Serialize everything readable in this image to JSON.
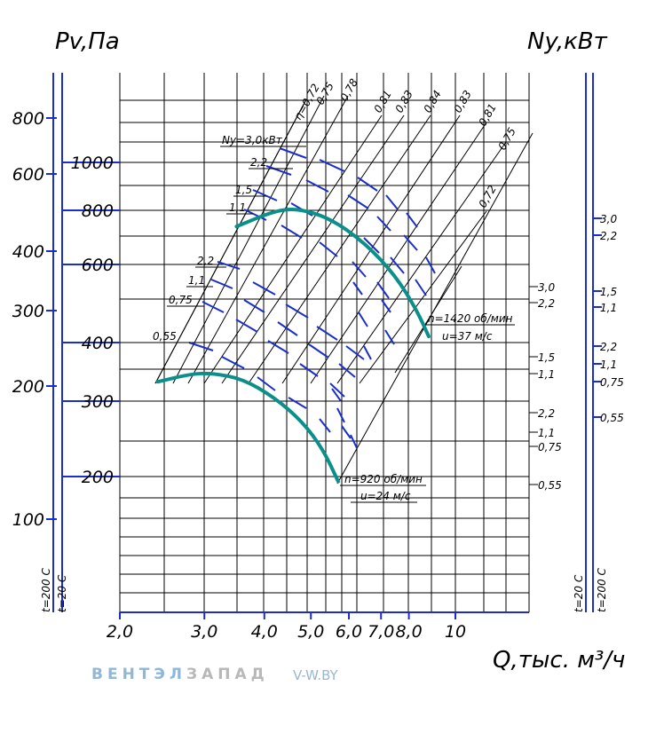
{
  "chart_data": {
    "type": "line",
    "title": "",
    "xlabel": "Q,тыс. м³/ч",
    "ylabel_left": "Pv,Па",
    "ylabel_right": "Ny,кВт",
    "x_ticks": [
      "2,0",
      "3,0",
      "4,0",
      "5,0",
      "6,0",
      "7,0",
      "8,0",
      "10"
    ],
    "x_tick_values": [
      2.0,
      3.0,
      4.0,
      5.0,
      6.0,
      7.0,
      8.0,
      10.0
    ],
    "xlim": [
      2.0,
      12.5
    ],
    "x_scale": "log",
    "y_ticks_inner": [
      "1000",
      "800",
      "600",
      "400",
      "300",
      "200"
    ],
    "y_ticks_outer": [
      "800",
      "600",
      "400",
      "300",
      "200",
      "100"
    ],
    "temp_left_outer": "t=200 C",
    "temp_left_inner": "t=20 C",
    "temp_right_inner": "t=20 C",
    "temp_right_outer": "t=200 C",
    "efficiency_labels": [
      "η=0,72",
      "0,75",
      "0,78",
      "0,81",
      "0,83",
      "0,84",
      "0,83",
      "0,81",
      "0,75",
      "0,72"
    ],
    "power_labels_upper": [
      "Ny=3,0кВт",
      "2,2",
      "1,5",
      "1,1"
    ],
    "power_labels_lower": [
      "2,2",
      "1,1",
      "0,75",
      "0,55"
    ],
    "power_scale_right_inner": [
      "3,0",
      "2,2",
      "1,5",
      "1,1",
      "2,2",
      "1,1",
      "0,75",
      "0,55"
    ],
    "power_scale_right_outer": [
      "3,0",
      "2,2",
      "1,5",
      "1,1",
      "2,2",
      "1,1",
      "0,75",
      "0,55"
    ],
    "series": [
      {
        "name": "n=1420 об/мин",
        "speed_label": "n=1420 об/мин",
        "velocity_label": "u=37 м/с",
        "points": [
          [
            3.5,
            720
          ],
          [
            4.2,
            780
          ],
          [
            4.7,
            790
          ],
          [
            5.5,
            750
          ],
          [
            6.5,
            660
          ],
          [
            7.5,
            560
          ],
          [
            8.3,
            470
          ],
          [
            8.8,
            410
          ]
        ]
      },
      {
        "name": "n=920 об/мин",
        "speed_label": "n=920 об/мин",
        "velocity_label": "u=24 м/с",
        "points": [
          [
            2.4,
            325
          ],
          [
            2.8,
            338
          ],
          [
            3.1,
            340
          ],
          [
            3.6,
            330
          ],
          [
            4.2,
            300
          ],
          [
            4.8,
            265
          ],
          [
            5.3,
            230
          ],
          [
            5.7,
            195
          ]
        ]
      }
    ],
    "grid": true,
    "colors": {
      "curve": "#0a8f8a",
      "blue": "#1a2ecc",
      "grid": "#000000"
    }
  },
  "brand": {
    "name_part1": "ВЕНТЭЛ",
    "name_part2": "ЗАПАД",
    "site": "V-W.BY"
  }
}
